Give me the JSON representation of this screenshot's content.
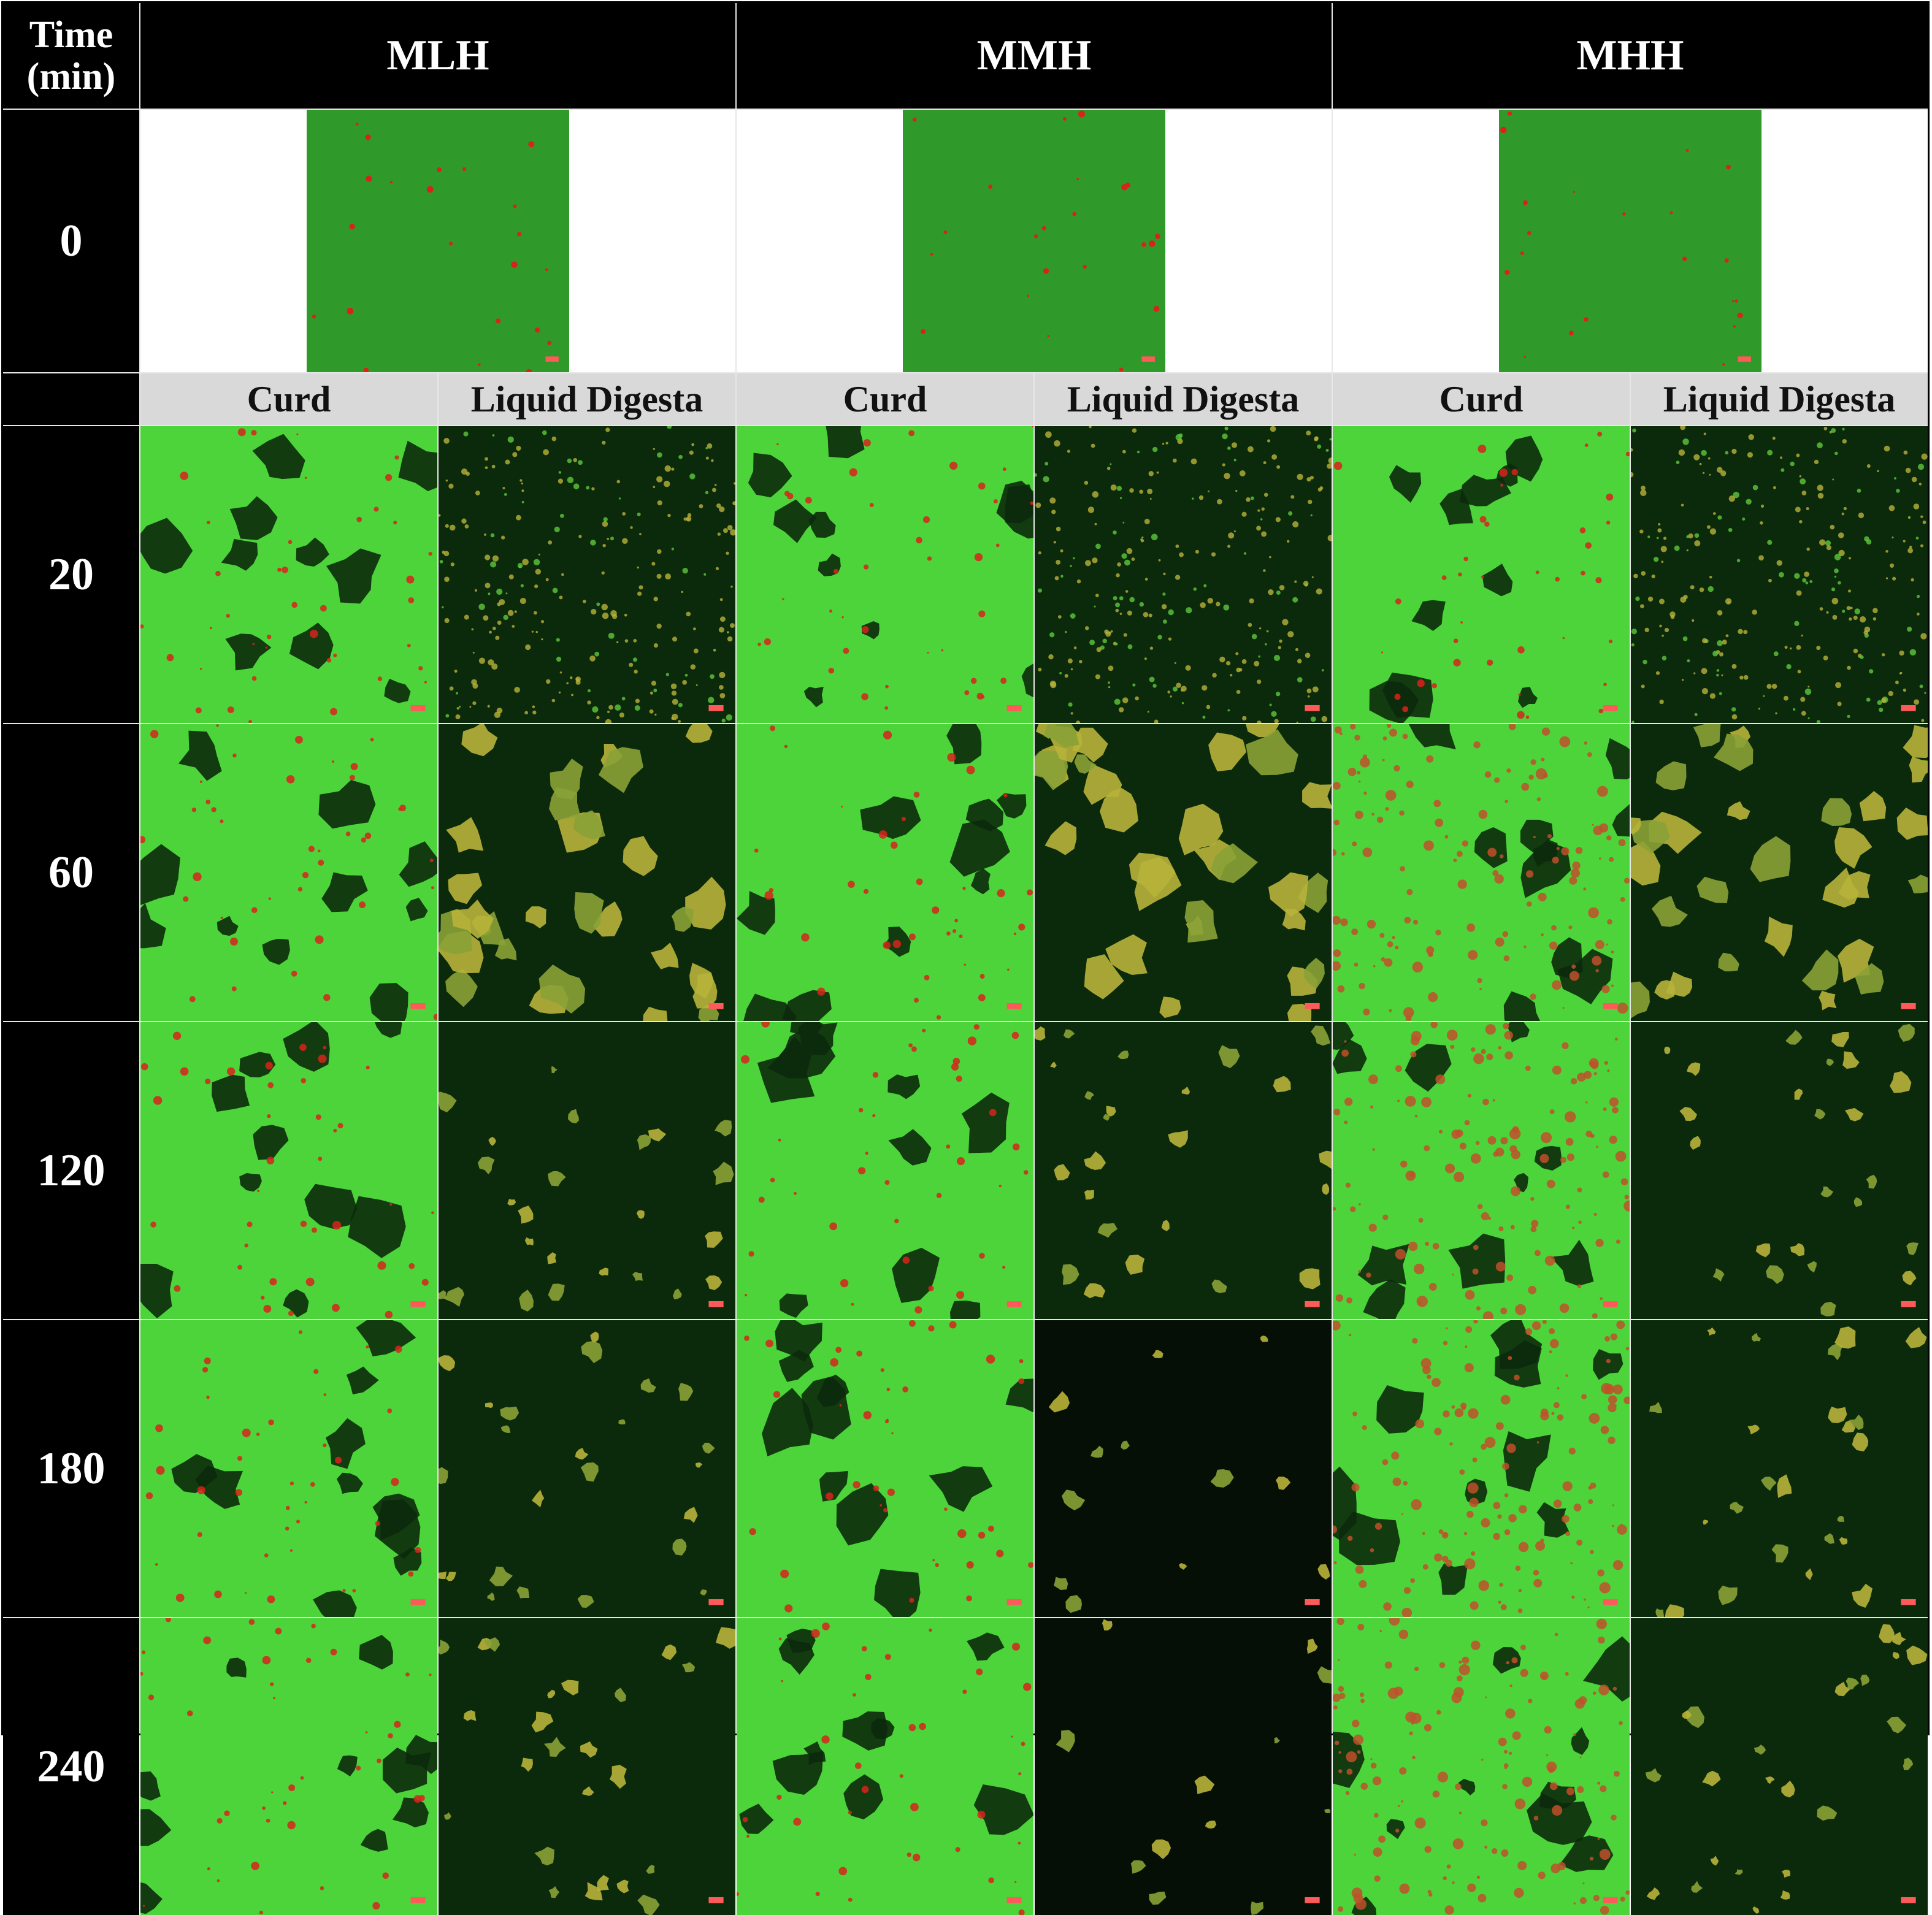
{
  "header": {
    "time_label_line1": "Time",
    "time_label_line2": "(min)",
    "groups": [
      "MLH",
      "MMH",
      "MHH"
    ]
  },
  "subheaders": [
    "Curd",
    "Liquid Digesta",
    "Curd",
    "Liquid Digesta",
    "Curd",
    "Liquid Digesta"
  ],
  "rows": [
    {
      "time": "0"
    },
    {
      "time": "20"
    },
    {
      "time": "60"
    },
    {
      "time": "120"
    },
    {
      "time": "180"
    },
    {
      "time": "240"
    }
  ],
  "colors": {
    "header_bg": "#000000",
    "subheader_bg": "#d9d9d9",
    "curd_green": "#4cd43a",
    "protein_red": "#d8231c",
    "digesta_dark": "#0b2a0b",
    "particle_yellow": "#b8b23a"
  }
}
